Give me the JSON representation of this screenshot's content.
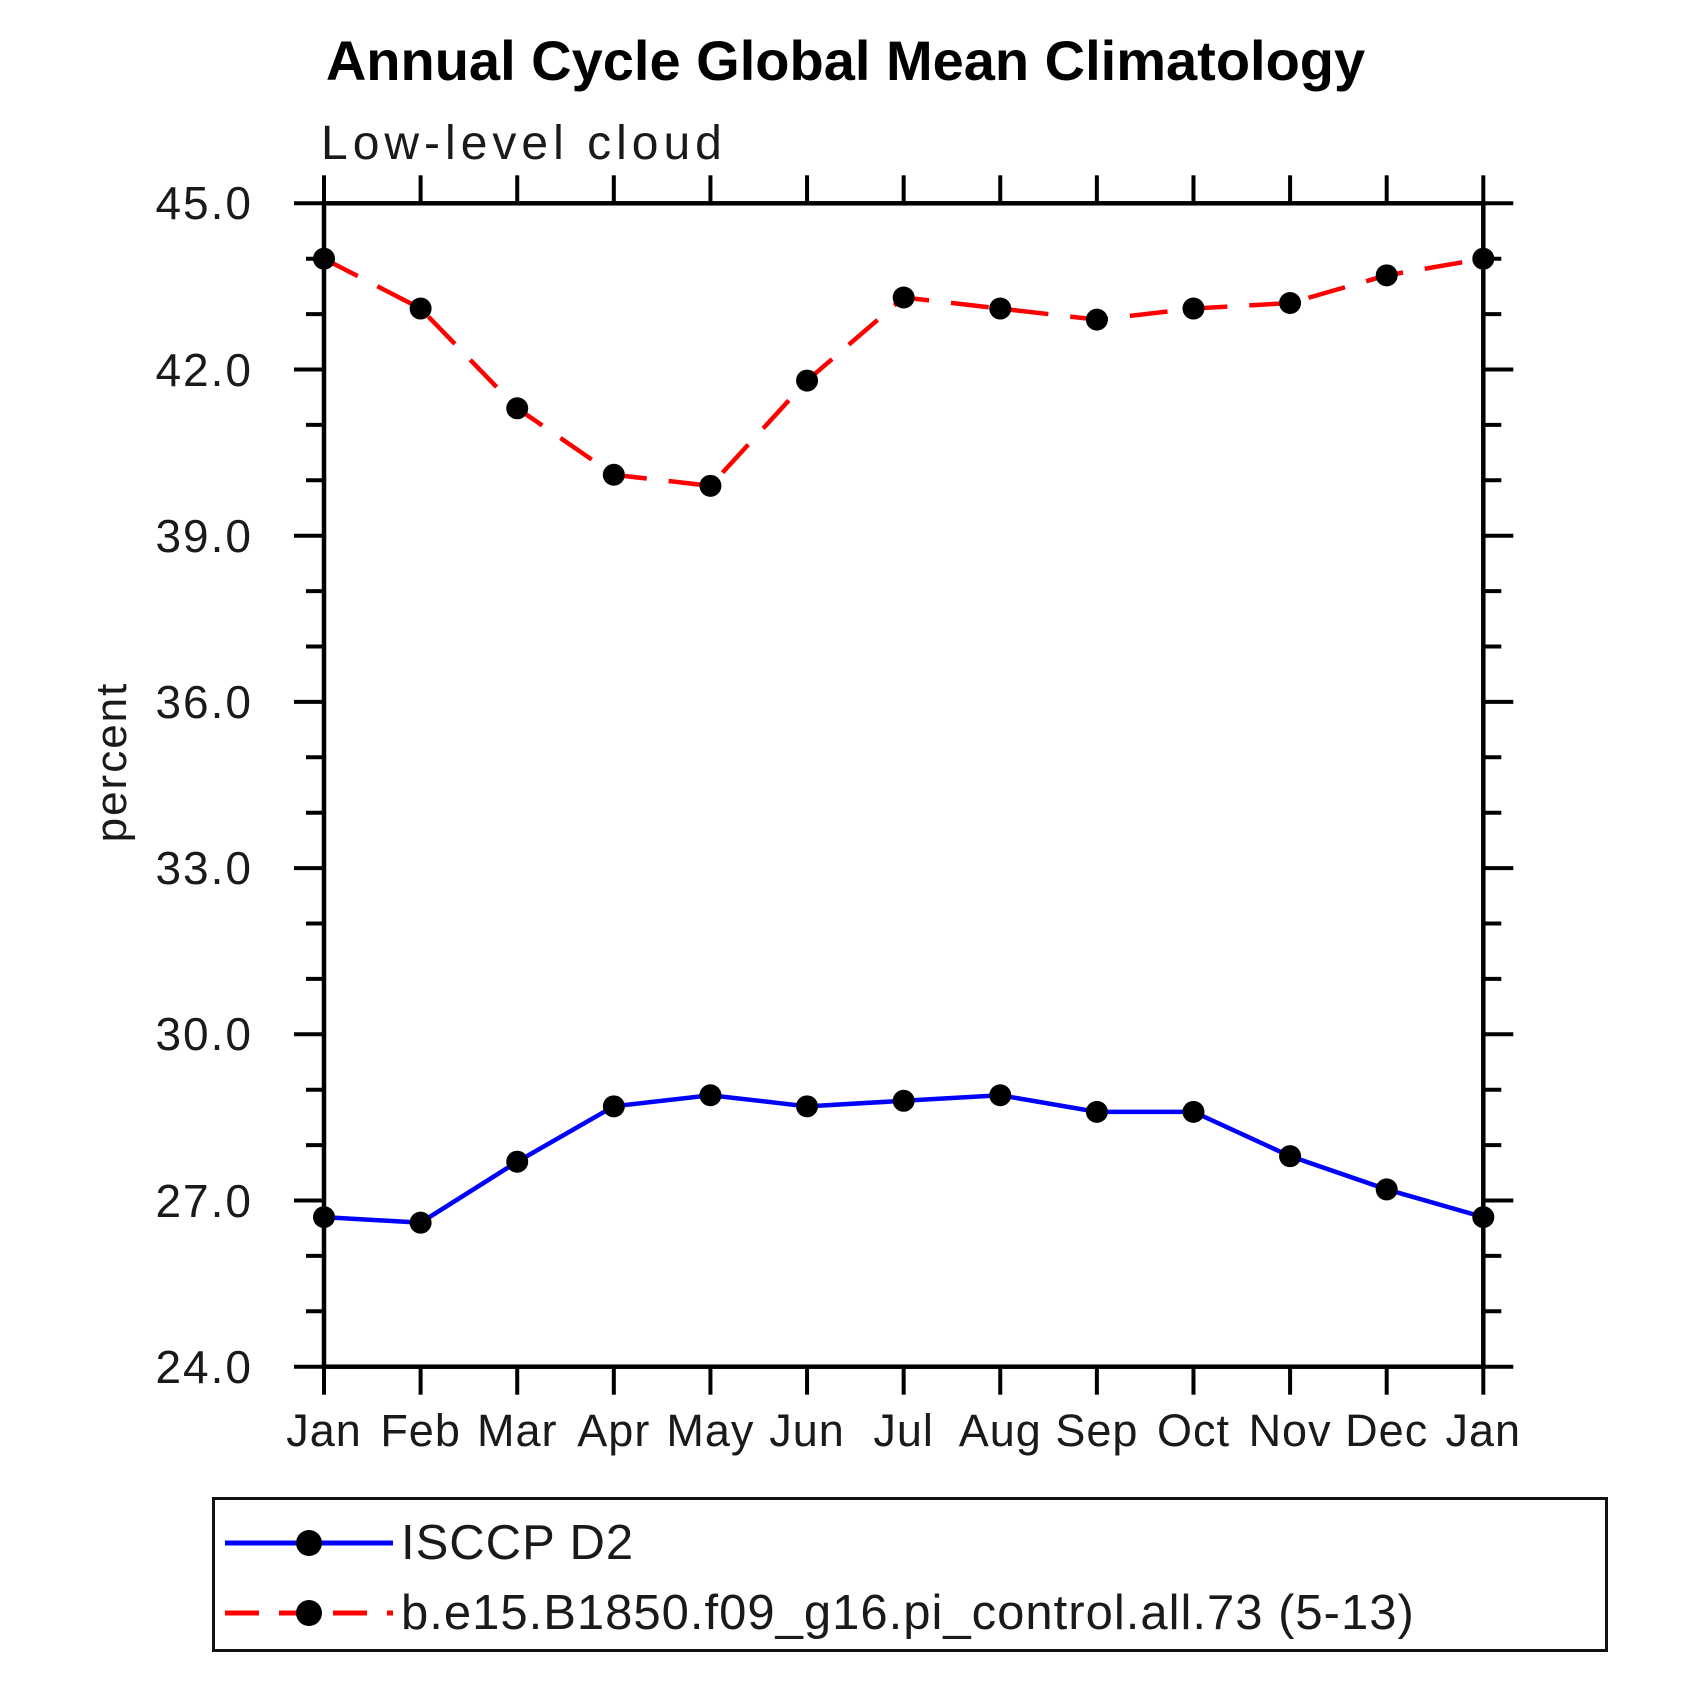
{
  "chart": {
    "title": "Annual Cycle Global Mean Climatology",
    "subtitle": "Low-level cloud",
    "ylabel": "percent"
  },
  "chart_data": {
    "type": "line",
    "categories": [
      "Jan",
      "Feb",
      "Mar",
      "Apr",
      "May",
      "Jun",
      "Jul",
      "Aug",
      "Sep",
      "Oct",
      "Nov",
      "Dec",
      "Jan"
    ],
    "series": [
      {
        "name": "ISCCP D2",
        "style": "solid",
        "color": "#0000ff",
        "marker": "circle",
        "marker_color": "#000000",
        "values": [
          26.7,
          26.6,
          27.7,
          28.7,
          28.9,
          28.7,
          28.8,
          28.9,
          28.6,
          28.6,
          27.8,
          27.2,
          26.7
        ]
      },
      {
        "name": "b.e15.B1850.f09_g16.pi_control.all.73 (5-13)",
        "style": "dashed",
        "color": "#ff0000",
        "marker": "circle",
        "marker_color": "#000000",
        "values": [
          44.0,
          43.1,
          41.3,
          40.1,
          39.9,
          41.8,
          43.3,
          43.1,
          42.9,
          43.1,
          43.2,
          43.7,
          44.0
        ]
      }
    ],
    "title": "Annual Cycle Global Mean Climatology",
    "subtitle": "Low-level cloud",
    "xlabel": "",
    "ylabel": "percent",
    "ylim": [
      24.0,
      45.0
    ],
    "ytick_labels": [
      "24.0",
      "27.0",
      "30.0",
      "33.0",
      "36.0",
      "39.0",
      "42.0",
      "45.0"
    ],
    "y_major_step": 3,
    "y_minor_step": 1,
    "grid": false,
    "legend_position": "bottom",
    "axis_color": "#000000"
  },
  "legend": {
    "entries": [
      {
        "label": "ISCCP D2"
      },
      {
        "label": "b.e15.B1850.f09_g16.pi_control.all.73 (5-13)"
      }
    ]
  }
}
